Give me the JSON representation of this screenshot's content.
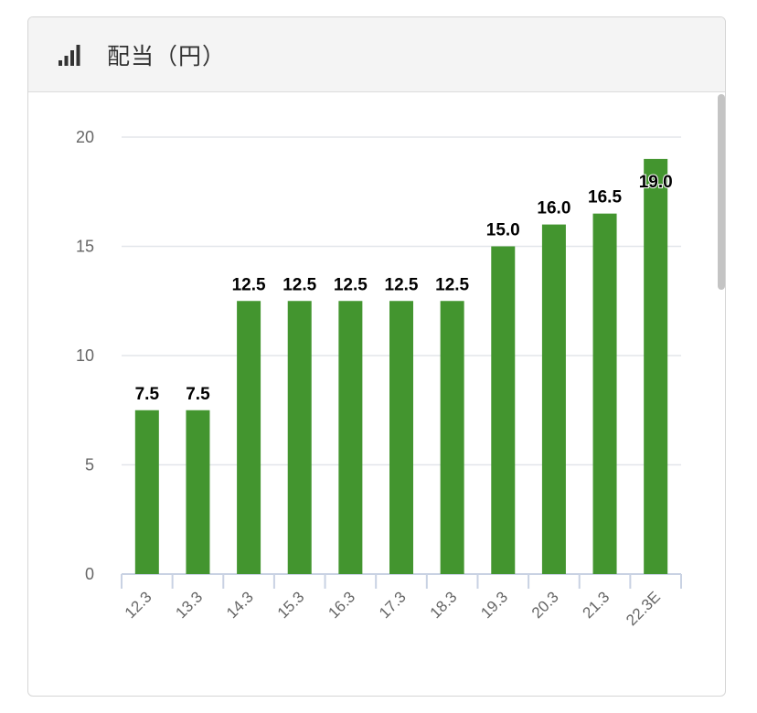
{
  "panel": {
    "title": "配当（円）",
    "icon": "bar-signal-icon"
  },
  "colors": {
    "bar": "#43952f",
    "grid": "#e3e6ea",
    "axis": "#c9d2e3"
  },
  "chart_data": {
    "type": "bar",
    "categories": [
      "12.3",
      "13.3",
      "14.3",
      "15.3",
      "16.3",
      "17.3",
      "18.3",
      "19.3",
      "20.3",
      "21.3",
      "22.3E"
    ],
    "values": [
      7.5,
      7.5,
      12.5,
      12.5,
      12.5,
      12.5,
      12.5,
      15.0,
      16.0,
      16.5,
      19.0
    ],
    "value_labels": [
      "7.5",
      "7.5",
      "12.5",
      "12.5",
      "12.5",
      "12.5",
      "12.5",
      "15.0",
      "16.0",
      "16.5",
      "19.0"
    ],
    "yticks": [
      "0",
      "5",
      "10",
      "15",
      "20"
    ],
    "ylim": [
      0,
      20
    ],
    "grid": true,
    "legend": "none"
  }
}
